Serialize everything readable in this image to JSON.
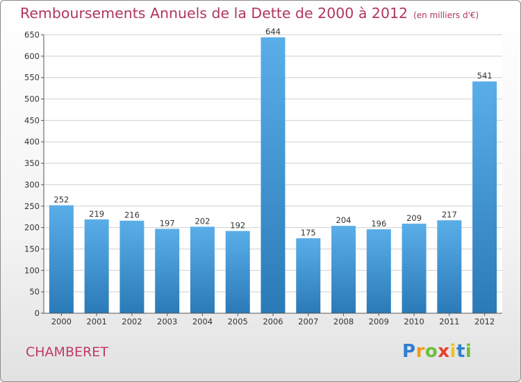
{
  "chart_data": {
    "type": "bar",
    "title": "Remboursements Annuels de la Dette de 2000 à 2012",
    "subtitle": "(en milliers d'€)",
    "categories": [
      "2000",
      "2001",
      "2002",
      "2003",
      "2004",
      "2005",
      "2006",
      "2007",
      "2008",
      "2009",
      "2010",
      "2011",
      "2012"
    ],
    "values": [
      252,
      219,
      216,
      197,
      202,
      192,
      644,
      175,
      204,
      196,
      209,
      217,
      541
    ],
    "ylim": [
      0,
      650
    ],
    "yticks": [
      0,
      50,
      100,
      150,
      200,
      250,
      300,
      350,
      400,
      450,
      500,
      550,
      600,
      650
    ],
    "grid": true,
    "colors": {
      "bar_light": "#5aaee8",
      "bar_dark": "#2a7ab8",
      "grid": "#cfcfcf"
    }
  },
  "footer": {
    "town": "CHAMBERET",
    "logo_letters": [
      "P",
      "r",
      "o",
      "x",
      "i",
      "t",
      "i"
    ],
    "logo_colors": [
      "#2f7fd0",
      "#f09a1c",
      "#6cbf3a",
      "#e8402a",
      "#f2c21a",
      "#2f7fd0",
      "#6cbf3a"
    ]
  }
}
